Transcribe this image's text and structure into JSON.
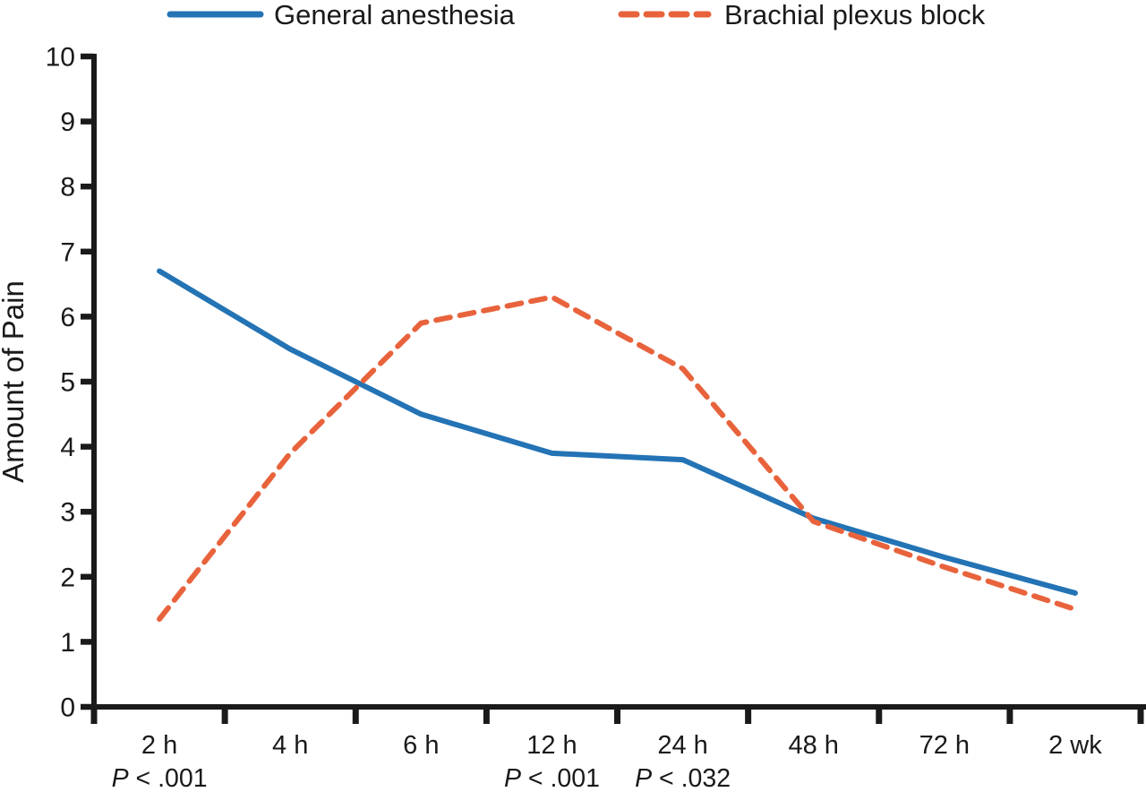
{
  "chart_data": {
    "type": "line",
    "categories": [
      "2 h",
      "4 h",
      "6 h",
      "12 h",
      "24 h",
      "48 h",
      "72 h",
      "2 wk"
    ],
    "series": [
      {
        "name": "General anesthesia",
        "style": "solid",
        "color": "#2373b5",
        "values": [
          6.7,
          5.5,
          4.5,
          3.9,
          3.8,
          2.9,
          2.3,
          1.75
        ]
      },
      {
        "name": "Brachial plexus block",
        "style": "dashed",
        "color": "#e8633c",
        "values": [
          1.35,
          3.9,
          5.9,
          6.3,
          5.2,
          2.85,
          2.15,
          1.5
        ]
      }
    ],
    "title": "",
    "xlabel": "",
    "ylabel": "Amount of Pain",
    "ylim": [
      0,
      10
    ],
    "yticks": [
      0,
      1,
      2,
      3,
      4,
      5,
      6,
      7,
      8,
      9,
      10
    ],
    "grid": false,
    "legend_position": "top",
    "axis_color": "#1a1a1a",
    "annotations": [
      {
        "label": "P < .001",
        "category": "2 h"
      },
      {
        "label": "P < .001",
        "category": "12 h"
      },
      {
        "label": "P < .032",
        "category": "24 h"
      }
    ]
  }
}
